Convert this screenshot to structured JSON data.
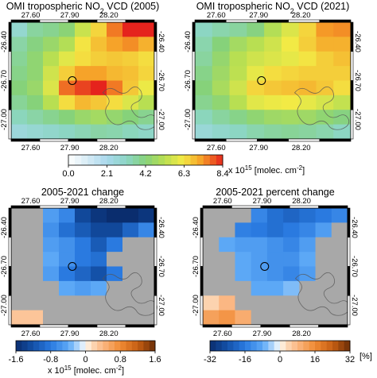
{
  "chart_data": [
    {
      "type": "heatmap",
      "panel": "no2_2005",
      "title": "OMI tropospheric NO₂ VCD (2005)",
      "x_ticks": [
        "27.60",
        "27.90",
        "28.20"
      ],
      "y_ticks": [
        "-26.40",
        "-26.70",
        "-27.00"
      ],
      "xlim": [
        27.45,
        28.55
      ],
      "ylim": [
        -27.15,
        -26.25
      ],
      "colorbar": "no2",
      "values": [
        [
          2.9,
          3.7,
          3.9,
          4.3,
          5.5,
          6.5,
          7.6,
          8.5,
          8.5
        ],
        [
          3.6,
          4.1,
          4.6,
          5.1,
          6.3,
          6.8,
          7.2,
          7.4,
          7.0
        ],
        [
          3.8,
          4.4,
          5.2,
          5.9,
          6.4,
          6.6,
          6.7,
          6.6,
          6.4
        ],
        [
          4.0,
          4.4,
          5.6,
          6.6,
          7.2,
          7.2,
          6.9,
          6.8,
          6.5
        ],
        [
          4.2,
          4.6,
          5.8,
          7.7,
          8.1,
          8.4,
          7.6,
          6.7,
          6.1
        ],
        [
          3.8,
          4.2,
          5.2,
          6.4,
          6.9,
          6.7,
          6.4,
          5.8,
          5.2
        ],
        [
          3.3,
          3.6,
          3.9,
          4.2,
          4.6,
          4.8,
          4.5,
          4.2,
          3.9
        ],
        [
          2.6,
          2.8,
          3.0,
          3.2,
          3.4,
          3.6,
          3.5,
          3.3,
          3.1
        ]
      ]
    },
    {
      "type": "heatmap",
      "panel": "no2_2021",
      "title": "OMI tropospheric NO₂ VCD (2021)",
      "x_ticks": [
        "27.60",
        "27.90",
        "28.20"
      ],
      "y_ticks": [
        "-26.40",
        "-26.70",
        "-27.00"
      ],
      "xlim": [
        27.45,
        28.55
      ],
      "ylim": [
        -27.15,
        -26.25
      ],
      "colorbar": "no2",
      "values": [
        [
          3.2,
          3.5,
          3.7,
          4.1,
          5.1,
          5.8,
          6.5,
          7.3,
          7.4
        ],
        [
          3.5,
          4.2,
          4.8,
          5.2,
          5.6,
          6.2,
          6.6,
          7.0,
          7.0
        ],
        [
          3.7,
          4.5,
          5.2,
          5.6,
          5.8,
          6.0,
          6.3,
          6.6,
          6.8
        ],
        [
          4.0,
          4.7,
          5.3,
          6.0,
          6.4,
          6.5,
          6.6,
          6.6,
          6.6
        ],
        [
          4.2,
          4.9,
          5.6,
          6.5,
          6.7,
          6.8,
          6.9,
          6.7,
          6.4
        ],
        [
          3.9,
          4.4,
          5.2,
          5.9,
          6.1,
          6.2,
          6.0,
          5.7,
          5.4
        ],
        [
          3.3,
          3.7,
          4.0,
          4.4,
          4.7,
          4.8,
          4.7,
          4.4,
          4.1
        ],
        [
          2.7,
          3.0,
          3.2,
          3.5,
          3.7,
          3.8,
          3.7,
          3.5,
          3.2
        ]
      ]
    },
    {
      "type": "heatmap",
      "panel": "change",
      "title": "2005-2021 change",
      "x_ticks": [
        "27.60",
        "27.90",
        "28.20"
      ],
      "y_ticks": [
        "-26.40",
        "-26.70",
        "-27.00"
      ],
      "xlim": [
        27.45,
        28.55
      ],
      "ylim": [
        -27.15,
        -26.25
      ],
      "colorbar": "change",
      "nan_color": "#a8a8a8",
      "values": [
        [
          null,
          null,
          -0.5,
          -0.7,
          -1.3,
          -1.5,
          -1.7,
          -1.7,
          -1.5
        ],
        [
          null,
          null,
          -0.6,
          -0.9,
          -1.1,
          -1.3,
          -1.3,
          -1.0,
          -0.7
        ],
        [
          null,
          null,
          -0.5,
          -0.6,
          -0.8,
          -1.1,
          -0.8,
          null,
          null
        ],
        [
          null,
          null,
          -0.4,
          -0.6,
          -0.8,
          -0.9,
          null,
          null,
          null
        ],
        [
          null,
          null,
          -0.5,
          -0.8,
          -1.0,
          -1.2,
          -0.8,
          null,
          null
        ],
        [
          null,
          null,
          null,
          -0.4,
          -0.5,
          -0.4,
          null,
          null,
          null
        ],
        [
          null,
          null,
          null,
          null,
          null,
          null,
          null,
          null,
          null
        ],
        [
          0.3,
          0.3,
          null,
          null,
          null,
          null,
          null,
          null,
          null
        ]
      ]
    },
    {
      "type": "heatmap",
      "panel": "percent_change",
      "title": "2005-2021 percent change",
      "x_ticks": [
        "27.60",
        "27.90",
        "28.20"
      ],
      "y_ticks": [
        "-26.40",
        "-26.70",
        "-27.00"
      ],
      "xlim": [
        27.45,
        28.55
      ],
      "ylim": [
        -27.15,
        -26.25
      ],
      "colorbar": "percent",
      "nan_color": "#a8a8a8",
      "values": [
        [
          null,
          null,
          null,
          -14,
          -18,
          -20,
          -18,
          -16,
          -14
        ],
        [
          null,
          null,
          -15,
          -16,
          -18,
          -16,
          -14,
          -10,
          null
        ],
        [
          null,
          -8,
          -10,
          -10,
          -12,
          -14,
          -10,
          null,
          null
        ],
        [
          null,
          null,
          -8,
          -10,
          -12,
          -12,
          -8,
          null,
          null
        ],
        [
          null,
          null,
          -8,
          -10,
          -12,
          -14,
          -10,
          null,
          null
        ],
        [
          null,
          null,
          null,
          -8,
          -8,
          -6,
          null,
          null,
          null
        ],
        [
          4,
          8,
          null,
          null,
          null,
          null,
          null,
          null,
          null
        ],
        [
          12,
          14,
          10,
          null,
          null,
          null,
          null,
          null,
          null
        ]
      ]
    }
  ],
  "colorbars": {
    "no2": {
      "ticks": [
        "0.0",
        "2.1",
        "4.2",
        "6.3",
        "8.4"
      ],
      "unit_prefix": "x 10",
      "unit_exp": "15",
      "unit_suffix": " [molec. cm",
      "unit_exp2": "-2",
      "unit_close": "]",
      "range": [
        0,
        8.4
      ]
    },
    "change": {
      "ticks": [
        "-1.6",
        "-0.8",
        "0",
        "0.8",
        "1.6"
      ],
      "unit_prefix": "x 10",
      "unit_exp": "15",
      "unit_suffix": " [molec. cm",
      "unit_exp2": "-2",
      "unit_close": "]",
      "range": [
        -1.6,
        1.6
      ]
    },
    "percent": {
      "ticks": [
        "-32",
        "-16",
        "0",
        "16",
        "32"
      ],
      "unit_label": "[%]",
      "range": [
        -32,
        32
      ]
    }
  },
  "marker": {
    "lon": 27.92,
    "lat": -26.7
  },
  "colors": {
    "nan_gray": "#a8a8a8",
    "marker": "#000000",
    "border": "#555555"
  }
}
